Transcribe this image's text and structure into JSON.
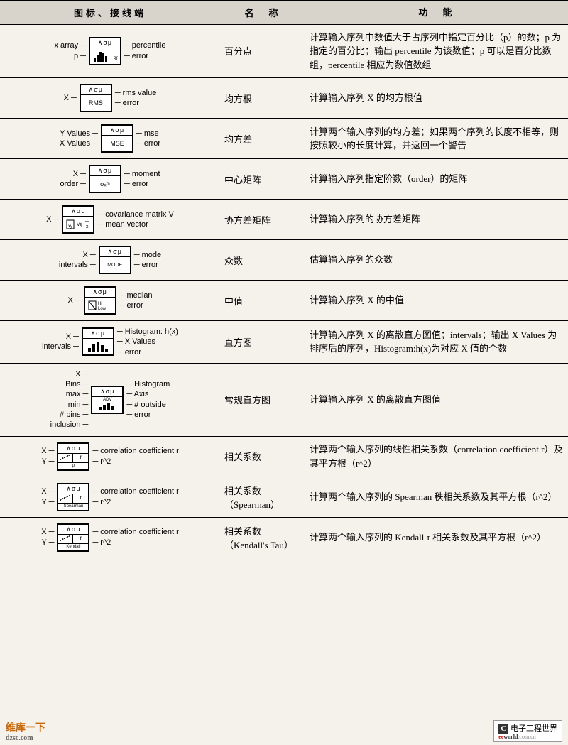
{
  "headers": {
    "col1": "图标、接线端",
    "col2": "名　称",
    "col3": "功　能"
  },
  "rows": [
    {
      "inputs": [
        "x array",
        "p"
      ],
      "outputs": [
        "percentile",
        "error"
      ],
      "box_top": "∧σμ",
      "box_bot_type": "hist-pct",
      "name": "百分点",
      "func": "计算输入序列中数值大于占序列中指定百分比（p）的数；p 为指定的百分比；输出 percentile 为该数值；p 可以是百分比数组，percentile 相应为数值数组"
    },
    {
      "inputs": [
        "X"
      ],
      "outputs": [
        "rms value",
        "error"
      ],
      "box_top": "∧σμ",
      "box_bot_text": "RMS",
      "name": "均方根",
      "func": "计算输入序列 X 的均方根值"
    },
    {
      "inputs": [
        "Y Values",
        "X Values"
      ],
      "outputs": [
        "mse",
        "error"
      ],
      "box_top": "∧σμ",
      "box_bot_text": "MSE",
      "name": "均方差",
      "func": "计算两个输入序列的均方差；如果两个序列的长度不相等，则按照较小的长度计算，并返回一个警告"
    },
    {
      "inputs": [
        "X",
        "order"
      ],
      "outputs": [
        "moment",
        "error"
      ],
      "box_top": "∧σμ",
      "box_bot_text": "σₓᵐ",
      "name": "中心矩阵",
      "func": "计算输入序列指定阶数（order）的矩阵"
    },
    {
      "inputs": [
        "X"
      ],
      "outputs": [
        "covariance matrix V",
        "mean vector"
      ],
      "box_top": "∧σμ",
      "box_bot_type": "cov",
      "name": "协方差矩阵",
      "func": "计算输入序列的协方差矩阵"
    },
    {
      "inputs": [
        "X",
        "intervals"
      ],
      "outputs": [
        "mode",
        "error"
      ],
      "box_top": "∧σμ",
      "box_bot_type": "mode",
      "name": "众数",
      "func": "估算输入序列的众数"
    },
    {
      "inputs": [
        "X"
      ],
      "outputs": [
        "median",
        "error"
      ],
      "box_top": "∧σμ",
      "box_bot_type": "median",
      "name": "中值",
      "func": "计算输入序列 X 的中值"
    },
    {
      "inputs": [
        "X",
        "intervals"
      ],
      "outputs": [
        "Histogram: h(x)",
        "X Values",
        "error"
      ],
      "box_top": "∧σμ",
      "box_bot_type": "hist",
      "name": "直方图",
      "func": "计算输入序列 X 的离散直方图值；intervals；输出 X Values 为排序后的序列，Histogram:h(x)为对应 X 值的个数"
    },
    {
      "inputs": [
        "X",
        "Bins",
        "max",
        "min",
        "# bins",
        "inclusion"
      ],
      "outputs": [
        "Histogram",
        "Axis",
        "# outside",
        "error"
      ],
      "box_top": "∧σμ",
      "box_bot_type": "adv-hist",
      "name": "常规直方图",
      "func": "计算输入序列 X 的离散直方图值"
    },
    {
      "inputs": [
        "X",
        "Y"
      ],
      "outputs": [
        "correlation coefficient r",
        "r^2"
      ],
      "box_top": "∧σμ",
      "box_bot_type": "corr",
      "box_bot_sub": "ρ",
      "name": "相关系数",
      "func": "计算两个输入序列的线性相关系数（correlation coefficient r）及其平方根（r^2）"
    },
    {
      "inputs": [
        "X",
        "Y"
      ],
      "outputs": [
        "correlation coefficient r",
        "r^2"
      ],
      "box_top": "∧σμ",
      "box_bot_type": "corr",
      "box_bot_sub": "Spearman",
      "name": "相关系数（Spearman）",
      "func": "计算两个输入序列的 Spearman 秩相关系数及其平方根（r^2）"
    },
    {
      "inputs": [
        "X",
        "Y"
      ],
      "outputs": [
        "correlation coefficient r",
        "r^2"
      ],
      "box_top": "∧σμ",
      "box_bot_type": "corr",
      "box_bot_sub": "Kendall",
      "name": "相关系数（Kendall's Tau）",
      "func": "计算两个输入序列的 Kendall τ 相关系数及其平方根（r^2）"
    }
  ],
  "footer": {
    "left_main": "维库一下",
    "left_sub": "dzsc.com",
    "right_brand": "电子工程世界",
    "right_ee": "ee",
    "right_world": "world",
    "right_domain": ".com.cn"
  }
}
